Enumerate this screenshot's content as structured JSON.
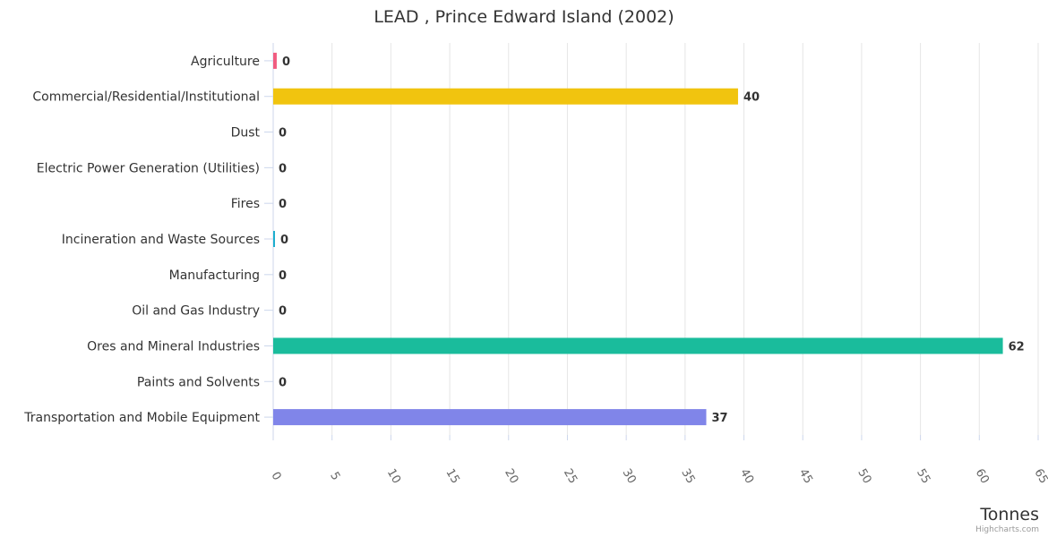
{
  "chart_data": {
    "type": "bar",
    "orientation": "horizontal",
    "title": "LEAD , Prince Edward Island (2002)",
    "xlabel": "",
    "ylabel": "Tonnes",
    "xlim": [
      0,
      65
    ],
    "tick_step": 5,
    "tick_labels": [
      "0",
      "5",
      "10",
      "15",
      "20",
      "25",
      "30",
      "35",
      "40",
      "45",
      "50",
      "55",
      "60",
      "65"
    ],
    "grid": true,
    "categories": [
      "Agriculture",
      "Commercial/Residential/Institutional",
      "Dust",
      "Electric Power Generation (Utilities)",
      "Fires",
      "Incineration and Waste Sources",
      "Manufacturing",
      "Oil and Gas Industry",
      "Ores and Mineral Industries",
      "Paints and Solvents",
      "Transportation and Mobile Equipment"
    ],
    "values": [
      0.3,
      39.5,
      0,
      0,
      0,
      0.15,
      0,
      0,
      62,
      0,
      36.8
    ],
    "data_labels": [
      "0",
      "40",
      "0",
      "0",
      "0",
      "0",
      "0",
      "0",
      "62",
      "0",
      "37"
    ],
    "colors": [
      "#f15c80",
      "#f1c40f",
      "#2f7ed8",
      "#8bbc21",
      "#910000",
      "#1aadce",
      "#492970",
      "#77a1e5",
      "#1abc9c",
      "#a6c96a",
      "#8085e9"
    ]
  },
  "credits": "Highcharts.com"
}
